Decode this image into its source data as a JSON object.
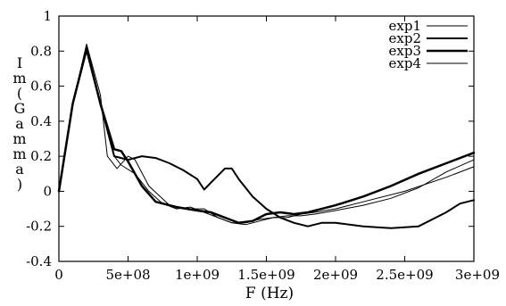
{
  "chart_data": {
    "type": "line",
    "title": "",
    "xlabel": "F (Hz)",
    "ylabel_chars": [
      "I",
      "m",
      "(",
      "G",
      "a",
      "m",
      "m",
      "a",
      ")"
    ],
    "xlim": [
      0,
      3000000000
    ],
    "ylim": [
      -0.4,
      1
    ],
    "x_ticks": [
      0,
      500000000,
      1000000000,
      1500000000,
      2000000000,
      2500000000,
      3000000000
    ],
    "x_tick_labels": [
      "0",
      "5e+08",
      "1e+09",
      "1.5e+09",
      "2e+09",
      "2.5e+09",
      "3e+09"
    ],
    "y_ticks": [
      -0.4,
      -0.2,
      0,
      0.2,
      0.4,
      0.6,
      0.8,
      1
    ],
    "y_tick_labels": [
      "-0.4",
      "-0.2",
      "0",
      "0.2",
      "0.4",
      "0.6",
      "0.8",
      "1"
    ],
    "grid": false,
    "legend_position": "top-right",
    "series": [
      {
        "name": "exp1",
        "width": 1,
        "x": [
          0,
          100000000,
          200000000,
          300000000,
          350000000,
          420000000,
          500000000,
          550000000,
          650000000,
          800000000,
          950000000,
          1050000000,
          1150000000,
          1250000000,
          1350000000,
          1450000000,
          1550000000,
          1650000000,
          1750000000,
          1850000000,
          2000000000,
          2200000000,
          2500000000,
          2800000000,
          3000000000
        ],
        "y": [
          0,
          0.5,
          0.84,
          0.55,
          0.2,
          0.13,
          0.2,
          0.18,
          0.03,
          -0.08,
          -0.1,
          -0.1,
          -0.15,
          -0.18,
          -0.18,
          -0.16,
          -0.15,
          -0.15,
          -0.13,
          -0.12,
          -0.1,
          -0.06,
          0,
          0.08,
          0.14
        ]
      },
      {
        "name": "exp2",
        "width": 2,
        "x": [
          0,
          100000000,
          200000000,
          300000000,
          400000000,
          450000000,
          500000000,
          600000000,
          700000000,
          800000000,
          900000000,
          1000000000,
          1050000000,
          1100000000,
          1200000000,
          1250000000,
          1300000000,
          1400000000,
          1500000000,
          1600000000,
          1700000000,
          1800000000,
          1900000000,
          2000000000,
          2200000000,
          2400000000,
          2600000000,
          2800000000,
          2900000000,
          3000000000
        ],
        "y": [
          0,
          0.5,
          0.82,
          0.5,
          0.2,
          0.19,
          0.18,
          0.2,
          0.19,
          0.16,
          0.12,
          0.07,
          0.01,
          0.05,
          0.13,
          0.13,
          0.07,
          -0.03,
          -0.1,
          -0.15,
          -0.18,
          -0.2,
          -0.18,
          -0.18,
          -0.2,
          -0.21,
          -0.2,
          -0.12,
          -0.07,
          -0.05
        ]
      },
      {
        "name": "exp3",
        "width": 2.5,
        "x": [
          0,
          100000000,
          200000000,
          300000000,
          400000000,
          450000000,
          500000000,
          600000000,
          700000000,
          850000000,
          1000000000,
          1100000000,
          1200000000,
          1300000000,
          1400000000,
          1500000000,
          1600000000,
          1700000000,
          1800000000,
          1900000000,
          2000000000,
          2200000000,
          2400000000,
          2600000000,
          2800000000,
          3000000000
        ],
        "y": [
          0,
          0.5,
          0.81,
          0.5,
          0.24,
          0.23,
          0.17,
          0.03,
          -0.06,
          -0.09,
          -0.11,
          -0.12,
          -0.15,
          -0.18,
          -0.17,
          -0.13,
          -0.12,
          -0.13,
          -0.12,
          -0.1,
          -0.08,
          -0.03,
          0.03,
          0.1,
          0.16,
          0.22
        ]
      },
      {
        "name": "exp4",
        "width": 1,
        "x": [
          0,
          100000000,
          200000000,
          300000000,
          400000000,
          450000000,
          550000000,
          650000000,
          750000000,
          850000000,
          950000000,
          1050000000,
          1150000000,
          1250000000,
          1350000000,
          1450000000,
          1550000000,
          1650000000,
          1750000000,
          1850000000,
          2000000000,
          2200000000,
          2400000000,
          2600000000,
          2800000000,
          3000000000
        ],
        "y": [
          0,
          0.5,
          0.83,
          0.5,
          0.2,
          0.15,
          0.1,
          0,
          -0.07,
          -0.1,
          -0.09,
          -0.12,
          -0.15,
          -0.18,
          -0.19,
          -0.17,
          -0.15,
          -0.14,
          -0.14,
          -0.13,
          -0.11,
          -0.08,
          -0.04,
          0.02,
          0.11,
          0.18
        ]
      }
    ]
  }
}
